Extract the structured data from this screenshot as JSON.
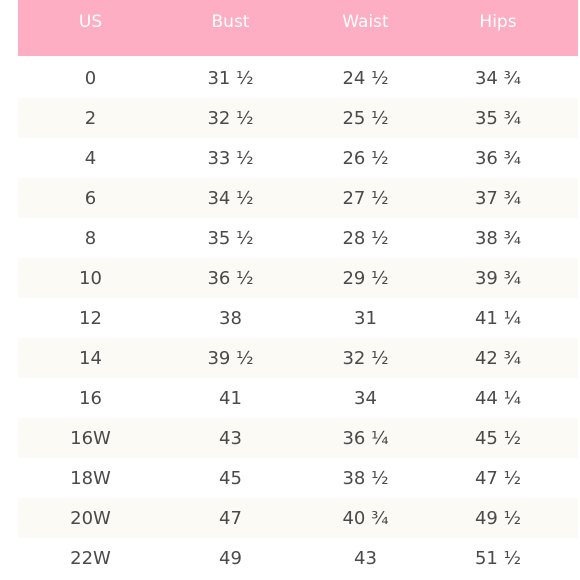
{
  "table": {
    "headers": [
      "US",
      "Bust",
      "Waist",
      "Hips"
    ],
    "rows": [
      [
        "0",
        "31 ½",
        "24 ½",
        "34 ¾"
      ],
      [
        "2",
        "32 ½",
        "25 ½",
        "35 ¾"
      ],
      [
        "4",
        "33 ½",
        "26 ½",
        "36 ¾"
      ],
      [
        "6",
        "34 ½",
        "27 ½",
        "37 ¾"
      ],
      [
        "8",
        "35 ½",
        "28 ½",
        "38 ¾"
      ],
      [
        "10",
        "36 ½",
        "29 ½",
        "39 ¾"
      ],
      [
        "12",
        "38",
        "31",
        "41 ¼"
      ],
      [
        "14",
        "39 ½",
        "32 ½",
        "42 ¾"
      ],
      [
        "16",
        "41",
        "34",
        "44 ¼"
      ],
      [
        "16W",
        "43",
        "36 ¼",
        "45 ½"
      ],
      [
        "18W",
        "45",
        "38 ½",
        "47 ½"
      ],
      [
        "20W",
        "47",
        "40 ¾",
        "49 ½"
      ],
      [
        "22W",
        "49",
        "43",
        "51 ½"
      ]
    ]
  },
  "colors": {
    "header_bg": "#fdaec3",
    "header_text": "#ffffff",
    "row_alt_bg": "#fcfaf5",
    "body_text": "#4a4a4a"
  }
}
